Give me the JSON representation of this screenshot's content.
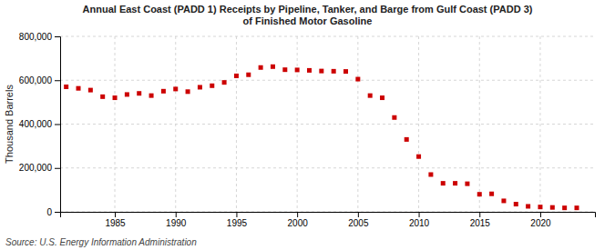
{
  "chart_data": {
    "type": "scatter",
    "title": "Annual East Coast (PADD 1) Receipts by Pipeline, Tanker, and Barge from Gulf Coast (PADD 3)\nof Finished Motor Gasoline",
    "ylabel": "Thousand Barrels",
    "source": "Source: U.S. Energy Information Administration",
    "x": [
      1981,
      1982,
      1983,
      1984,
      1985,
      1986,
      1987,
      1988,
      1989,
      1990,
      1991,
      1992,
      1993,
      1994,
      1995,
      1996,
      1997,
      1998,
      1999,
      2000,
      2001,
      2002,
      2003,
      2004,
      2005,
      2006,
      2007,
      2008,
      2009,
      2010,
      2011,
      2012,
      2013,
      2014,
      2015,
      2016,
      2017,
      2018,
      2019,
      2020,
      2021,
      2022,
      2023
    ],
    "values": [
      570000,
      563000,
      555000,
      525000,
      520000,
      535000,
      540000,
      530000,
      550000,
      560000,
      548000,
      568000,
      575000,
      590000,
      620000,
      625000,
      658000,
      662000,
      648000,
      647000,
      645000,
      642000,
      641000,
      640000,
      605000,
      530000,
      520000,
      430000,
      330000,
      252000,
      170000,
      130000,
      130000,
      128000,
      80000,
      82000,
      50000,
      35000,
      25000,
      22000,
      20000,
      18000,
      18000
    ],
    "color": "#cc0000",
    "marker": "square",
    "xlim": [
      1980.5,
      2024.5
    ],
    "ylim": [
      0,
      800000
    ],
    "xticks": [
      1985,
      1990,
      1995,
      2000,
      2005,
      2010,
      2015,
      2020
    ],
    "yticks": [
      0,
      {
        "value": 200000,
        "label": "200,000"
      },
      {
        "value": 400000,
        "label": "400,000"
      },
      {
        "value": 600000,
        "label": "600,000"
      },
      {
        "value": 800000,
        "label": "800,000"
      }
    ],
    "grid": true
  }
}
